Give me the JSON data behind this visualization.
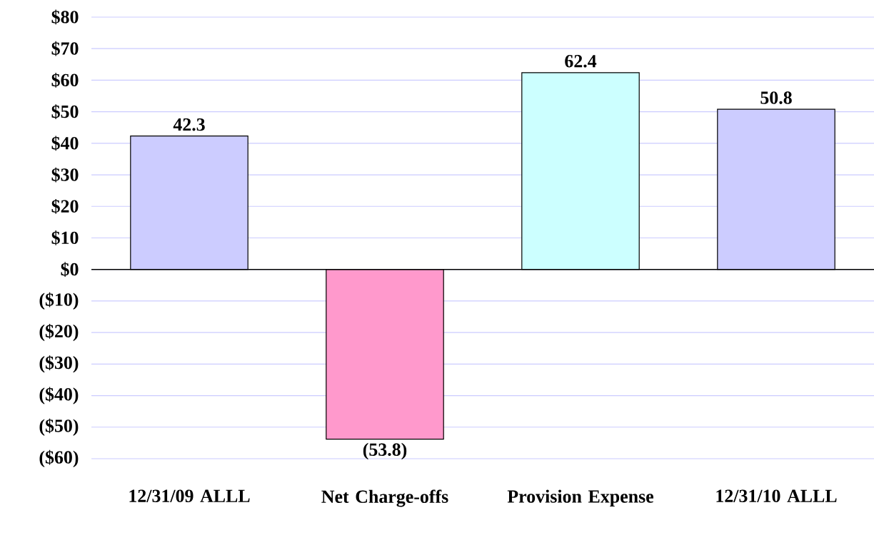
{
  "chart_data": {
    "type": "bar",
    "categories": [
      "12/31/09 ALLL",
      "Net Charge-offs",
      "Provision Expense",
      "12/31/10 ALLL"
    ],
    "values": [
      42.3,
      -53.8,
      62.4,
      50.8
    ],
    "colors": [
      "#ccccff",
      "#ff99cc",
      "#ccffff",
      "#ccccff"
    ],
    "value_labels": [
      "42.3",
      "(53.8)",
      "62.4",
      "50.8"
    ],
    "ylim": [
      -60,
      80
    ],
    "yticks": [
      {
        "value": -60,
        "label": "($60)"
      },
      {
        "value": -50,
        "label": "($50)"
      },
      {
        "value": -40,
        "label": "($40)"
      },
      {
        "value": -30,
        "label": "($30)"
      },
      {
        "value": -20,
        "label": "($20)"
      },
      {
        "value": -10,
        "label": "($10)"
      },
      {
        "value": 0,
        "label": "$0"
      },
      {
        "value": 10,
        "label": "$10"
      },
      {
        "value": 20,
        "label": "$20"
      },
      {
        "value": 30,
        "label": "$30"
      },
      {
        "value": 40,
        "label": "$40"
      },
      {
        "value": 50,
        "label": "$50"
      },
      {
        "value": 60,
        "label": "$60"
      },
      {
        "value": 70,
        "label": "$70"
      },
      {
        "value": 80,
        "label": "$80"
      }
    ],
    "grid": "y"
  }
}
